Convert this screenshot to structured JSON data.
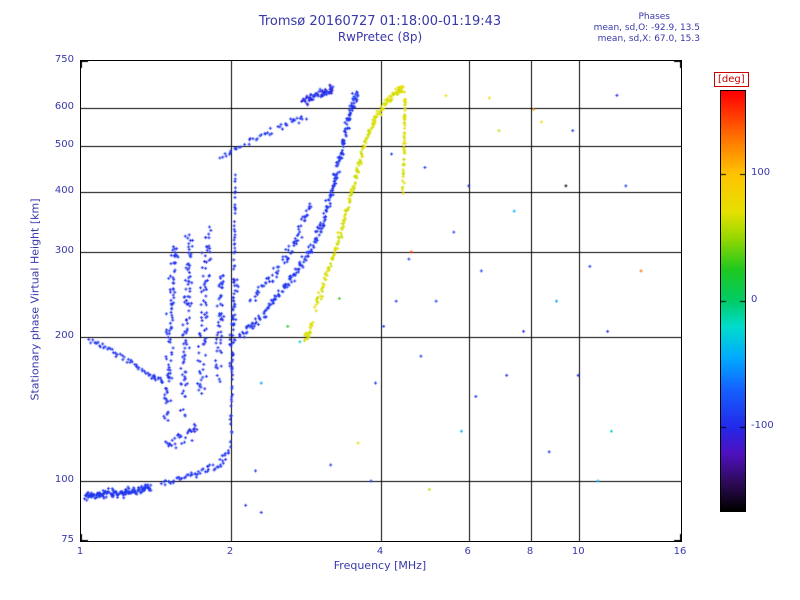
{
  "chart_data": {
    "type": "scatter",
    "title": "Tromsø 20160727 01:18:00-01:19:43",
    "subtitle": "RwPretec (8p)",
    "stats": {
      "heading": "Phases",
      "line_o": "mean, sd,O: -92.9, 13.5",
      "line_x": "mean, sd,X:  67.0, 15.3"
    },
    "xlabel": "Frequency [MHz]",
    "ylabel": "Stationary phase Virtual Height [km]",
    "x_range": [
      1,
      16
    ],
    "y_range": [
      75,
      750
    ],
    "x_scale": "log",
    "y_scale": "log",
    "grid": true,
    "colors": {
      "text": "#3838aa",
      "grid": "#000000",
      "deg_label": "#cc0000",
      "background": "#ffffff"
    },
    "x_ticks": [
      {
        "value": 1,
        "label": "1"
      },
      {
        "value": 2,
        "label": "2"
      },
      {
        "value": 4,
        "label": "4"
      },
      {
        "value": 6,
        "label": "6"
      },
      {
        "value": 8,
        "label": "8"
      },
      {
        "value": 10,
        "label": "10"
      },
      {
        "value": 16,
        "label": "16"
      }
    ],
    "y_ticks": [
      {
        "value": 750,
        "label": "750"
      },
      {
        "value": 600,
        "label": "600"
      },
      {
        "value": 500,
        "label": "500"
      },
      {
        "value": 400,
        "label": "400"
      },
      {
        "value": 300,
        "label": "300"
      },
      {
        "value": 200,
        "label": "200"
      },
      {
        "value": 100,
        "label": "100"
      },
      {
        "value": 75,
        "label": "75"
      }
    ],
    "x_gridlines": [
      2,
      4,
      6,
      8,
      10
    ],
    "y_gridlines": [
      100,
      200,
      300,
      400,
      500,
      600
    ],
    "colorbar": {
      "title": "[deg]",
      "range": [
        -165,
        165
      ],
      "ticks": [
        {
          "value": 100,
          "label": "100"
        },
        {
          "value": 0,
          "label": "0"
        },
        {
          "value": -100,
          "label": "-100"
        }
      ],
      "stops": [
        [
          -165,
          "#000000"
        ],
        [
          -145,
          "#2a0a50"
        ],
        [
          -120,
          "#5010c0"
        ],
        [
          -100,
          "#2428e8"
        ],
        [
          -70,
          "#1560ff"
        ],
        [
          -45,
          "#00aaff"
        ],
        [
          -20,
          "#00ddcc"
        ],
        [
          0,
          "#00cc66"
        ],
        [
          25,
          "#20c820"
        ],
        [
          50,
          "#98d800"
        ],
        [
          70,
          "#e6e000"
        ],
        [
          100,
          "#ffc400"
        ],
        [
          128,
          "#ff7400"
        ],
        [
          152,
          "#ff2800"
        ],
        [
          165,
          "#ff0000"
        ]
      ]
    },
    "mode_phases": {
      "O_mean": -92.9,
      "O_sd": 13.5,
      "X_mean": 67.0,
      "X_sd": 15.3
    },
    "traces": [
      {
        "name": "e-region-dense",
        "phase": -93,
        "phase_sd": 7,
        "n": 150,
        "f_jitter": 0.012,
        "h_jitter": 0.02,
        "anchors": [
          [
            1.02,
            93
          ],
          [
            1.12,
            94
          ],
          [
            1.25,
            95
          ],
          [
            1.38,
            97
          ]
        ]
      },
      {
        "name": "e-region-rise",
        "phase": -93,
        "phase_sd": 7,
        "n": 55,
        "f_jitter": 0.01,
        "h_jitter": 0.025,
        "anchors": [
          [
            1.45,
            98
          ],
          [
            1.6,
            101
          ],
          [
            1.75,
            104
          ],
          [
            1.9,
            109
          ],
          [
            2.0,
            118
          ]
        ]
      },
      {
        "name": "e-f-cusp",
        "phase": -93,
        "phase_sd": 7,
        "n": 70,
        "f_jitter": 0.004,
        "h_jitter": 0.03,
        "anchors": [
          [
            2.0,
            125
          ],
          [
            2.01,
            160
          ],
          [
            2.02,
            210
          ],
          [
            2.03,
            270
          ],
          [
            2.035,
            340
          ],
          [
            2.04,
            430
          ]
        ]
      },
      {
        "name": "low-left-arc",
        "phase": -93,
        "phase_sd": 7,
        "n": 55,
        "f_jitter": 0.008,
        "h_jitter": 0.015,
        "anchors": [
          [
            1.04,
            197
          ],
          [
            1.14,
            188
          ],
          [
            1.26,
            176
          ],
          [
            1.38,
            166
          ],
          [
            1.46,
            161
          ]
        ]
      },
      {
        "name": "spread-f-col1",
        "phase": -95,
        "phase_sd": 9,
        "n": 90,
        "f_jitter": 0.02,
        "h_jitter": 0.05,
        "anchors": [
          [
            1.48,
            135
          ],
          [
            1.5,
            180
          ],
          [
            1.52,
            240
          ],
          [
            1.54,
            310
          ]
        ]
      },
      {
        "name": "spread-f-col2",
        "phase": -95,
        "phase_sd": 9,
        "n": 85,
        "f_jitter": 0.02,
        "h_jitter": 0.05,
        "anchors": [
          [
            1.6,
            140
          ],
          [
            1.62,
            190
          ],
          [
            1.64,
            250
          ],
          [
            1.66,
            320
          ]
        ]
      },
      {
        "name": "spread-f-col3",
        "phase": -95,
        "phase_sd": 9,
        "n": 75,
        "f_jitter": 0.02,
        "h_jitter": 0.05,
        "anchors": [
          [
            1.74,
            150
          ],
          [
            1.76,
            200
          ],
          [
            1.78,
            260
          ],
          [
            1.8,
            330
          ]
        ]
      },
      {
        "name": "spread-f-col4",
        "phase": -95,
        "phase_sd": 9,
        "n": 50,
        "f_jitter": 0.018,
        "h_jitter": 0.05,
        "anchors": [
          [
            1.88,
            165
          ],
          [
            1.9,
            215
          ],
          [
            1.92,
            270
          ]
        ]
      },
      {
        "name": "spread-f-col5",
        "phase": -95,
        "phase_sd": 9,
        "n": 30,
        "f_jitter": 0.015,
        "h_jitter": 0.04,
        "anchors": [
          [
            2.0,
            170
          ],
          [
            2.02,
            215
          ],
          [
            2.05,
            260
          ]
        ]
      },
      {
        "name": "spread-f-low-tail",
        "phase": -95,
        "phase_sd": 8,
        "n": 30,
        "f_jitter": 0.03,
        "h_jitter": 0.04,
        "anchors": [
          [
            1.48,
            118
          ],
          [
            1.6,
            124
          ],
          [
            1.72,
            130
          ]
        ]
      },
      {
        "name": "f-trace-main",
        "phase": -93,
        "phase_sd": 7,
        "n": 260,
        "f_jitter": 0.01,
        "h_jitter": 0.025,
        "anchors": [
          [
            2.08,
            200
          ],
          [
            2.3,
            220
          ],
          [
            2.5,
            245
          ],
          [
            2.7,
            272
          ],
          [
            2.9,
            305
          ],
          [
            3.05,
            345
          ],
          [
            3.18,
            395
          ],
          [
            3.28,
            450
          ],
          [
            3.38,
            520
          ],
          [
            3.48,
            590
          ],
          [
            3.58,
            645
          ]
        ]
      },
      {
        "name": "f-trace-inner",
        "phase": -93,
        "phase_sd": 7,
        "n": 70,
        "f_jitter": 0.012,
        "h_jitter": 0.03,
        "anchors": [
          [
            2.2,
            240
          ],
          [
            2.4,
            265
          ],
          [
            2.6,
            295
          ],
          [
            2.75,
            330
          ],
          [
            2.9,
            375
          ]
        ]
      },
      {
        "name": "upper-arc",
        "phase": -93,
        "phase_sd": 8,
        "n": 45,
        "f_jitter": 0.012,
        "h_jitter": 0.015,
        "anchors": [
          [
            1.9,
            470
          ],
          [
            2.1,
            500
          ],
          [
            2.35,
            530
          ],
          [
            2.6,
            555
          ],
          [
            2.8,
            575
          ]
        ]
      },
      {
        "name": "top-blob",
        "phase": -100,
        "phase_sd": 25,
        "n": 70,
        "f_jitter": 0.02,
        "h_jitter": 0.018,
        "anchors": [
          [
            2.8,
            618
          ],
          [
            3.0,
            638
          ],
          [
            3.2,
            655
          ]
        ]
      },
      {
        "name": "x-trace-main",
        "phase": 67,
        "phase_sd": 10,
        "n": 220,
        "f_jitter": 0.008,
        "h_jitter": 0.02,
        "anchors": [
          [
            2.95,
            230
          ],
          [
            3.1,
            265
          ],
          [
            3.25,
            305
          ],
          [
            3.38,
            350
          ],
          [
            3.5,
            400
          ],
          [
            3.62,
            460
          ],
          [
            3.75,
            520
          ],
          [
            3.9,
            570
          ],
          [
            4.1,
            615
          ],
          [
            4.3,
            645
          ],
          [
            4.42,
            658
          ]
        ]
      },
      {
        "name": "x-trace-vertical",
        "phase": 67,
        "phase_sd": 9,
        "n": 55,
        "f_jitter": 0.004,
        "h_jitter": 0.03,
        "anchors": [
          [
            4.43,
            400
          ],
          [
            4.45,
            480
          ],
          [
            4.46,
            560
          ],
          [
            4.47,
            640
          ]
        ]
      },
      {
        "name": "x-trace-low",
        "phase": 67,
        "phase_sd": 10,
        "n": 22,
        "f_jitter": 0.01,
        "h_jitter": 0.02,
        "anchors": [
          [
            2.82,
            198
          ],
          [
            2.92,
            212
          ]
        ]
      }
    ],
    "points": [
      [
        4.81,
        182,
        -95
      ],
      [
        5.16,
        237,
        -88
      ],
      [
        5.4,
        635,
        72
      ],
      [
        5.8,
        127,
        -45
      ],
      [
        6.0,
        412,
        -100
      ],
      [
        6.36,
        274,
        -85
      ],
      [
        6.6,
        628,
        75
      ],
      [
        6.9,
        537,
        62
      ],
      [
        7.15,
        166,
        -95
      ],
      [
        7.4,
        365,
        -45
      ],
      [
        7.73,
        205,
        -100
      ],
      [
        8.1,
        595,
        120
      ],
      [
        8.4,
        560,
        70
      ],
      [
        8.7,
        115,
        -95
      ],
      [
        9.0,
        237,
        -50
      ],
      [
        9.4,
        412,
        -160
      ],
      [
        9.7,
        537,
        -90
      ],
      [
        9.95,
        166,
        -100
      ],
      [
        10.5,
        280,
        -88
      ],
      [
        10.9,
        100,
        -40
      ],
      [
        11.4,
        205,
        -95
      ],
      [
        11.6,
        127,
        -30
      ],
      [
        11.9,
        636,
        -100
      ],
      [
        12.4,
        412,
        -92
      ],
      [
        13.3,
        274,
        130
      ],
      [
        4.29,
        237,
        -95
      ],
      [
        4.6,
        300,
        145
      ],
      [
        4.55,
        290,
        -90
      ],
      [
        3.82,
        100,
        -93
      ],
      [
        3.17,
        108,
        -93
      ],
      [
        2.24,
        105,
        -93
      ],
      [
        4.9,
        450,
        -90
      ],
      [
        5.0,
        96,
        60
      ],
      [
        6.2,
        150,
        -95
      ],
      [
        5.6,
        330,
        -85
      ],
      [
        2.6,
        210,
        20
      ],
      [
        2.75,
        195,
        -30
      ],
      [
        3.3,
        240,
        30
      ],
      [
        2.3,
        160,
        -50
      ],
      [
        2.14,
        89,
        -93
      ],
      [
        2.3,
        86,
        -93
      ],
      [
        4.2,
        480,
        -92
      ],
      [
        4.05,
        210,
        -90
      ],
      [
        3.9,
        160,
        -95
      ],
      [
        3.6,
        120,
        70
      ]
    ]
  }
}
